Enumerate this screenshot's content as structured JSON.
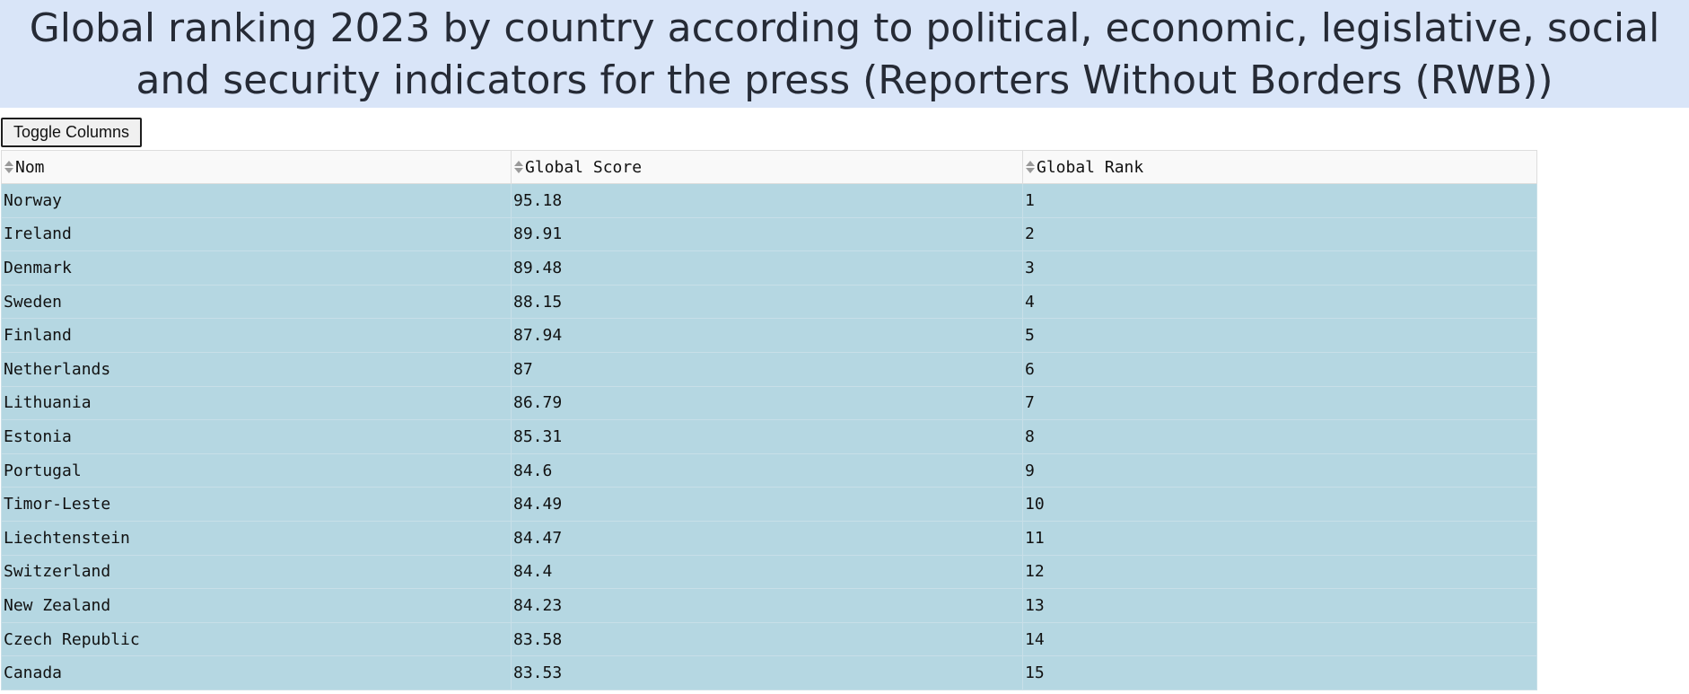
{
  "title": {
    "line1": "Global ranking 2023 by country according to political, economic, legislative, social",
    "line2": "and security indicators for the press (Reporters Without Borders (RWB))"
  },
  "toolbar": {
    "toggle_columns_label": "Toggle Columns"
  },
  "table": {
    "columns": [
      "Nom",
      "Global Score",
      "Global Rank"
    ],
    "rows": [
      [
        "Norway",
        "95.18",
        "1"
      ],
      [
        "Ireland",
        "89.91",
        "2"
      ],
      [
        "Denmark",
        "89.48",
        "3"
      ],
      [
        "Sweden",
        "88.15",
        "4"
      ],
      [
        "Finland",
        "87.94",
        "5"
      ],
      [
        "Netherlands",
        "87",
        "6"
      ],
      [
        "Lithuania",
        "86.79",
        "7"
      ],
      [
        "Estonia",
        "85.31",
        "8"
      ],
      [
        "Portugal",
        "84.6",
        "9"
      ],
      [
        "Timor-Leste",
        "84.49",
        "10"
      ],
      [
        "Liechtenstein",
        "84.47",
        "11"
      ],
      [
        "Switzerland",
        "84.4",
        "12"
      ],
      [
        "New Zealand",
        "84.23",
        "13"
      ],
      [
        "Czech Republic",
        "83.58",
        "14"
      ],
      [
        "Canada",
        "83.53",
        "15"
      ]
    ]
  },
  "colors": {
    "title_background": "#d9e5f8",
    "row_background": "#b5d7e2",
    "header_background": "#f9f9f9"
  },
  "icons": {
    "sort": "sort-icon"
  }
}
